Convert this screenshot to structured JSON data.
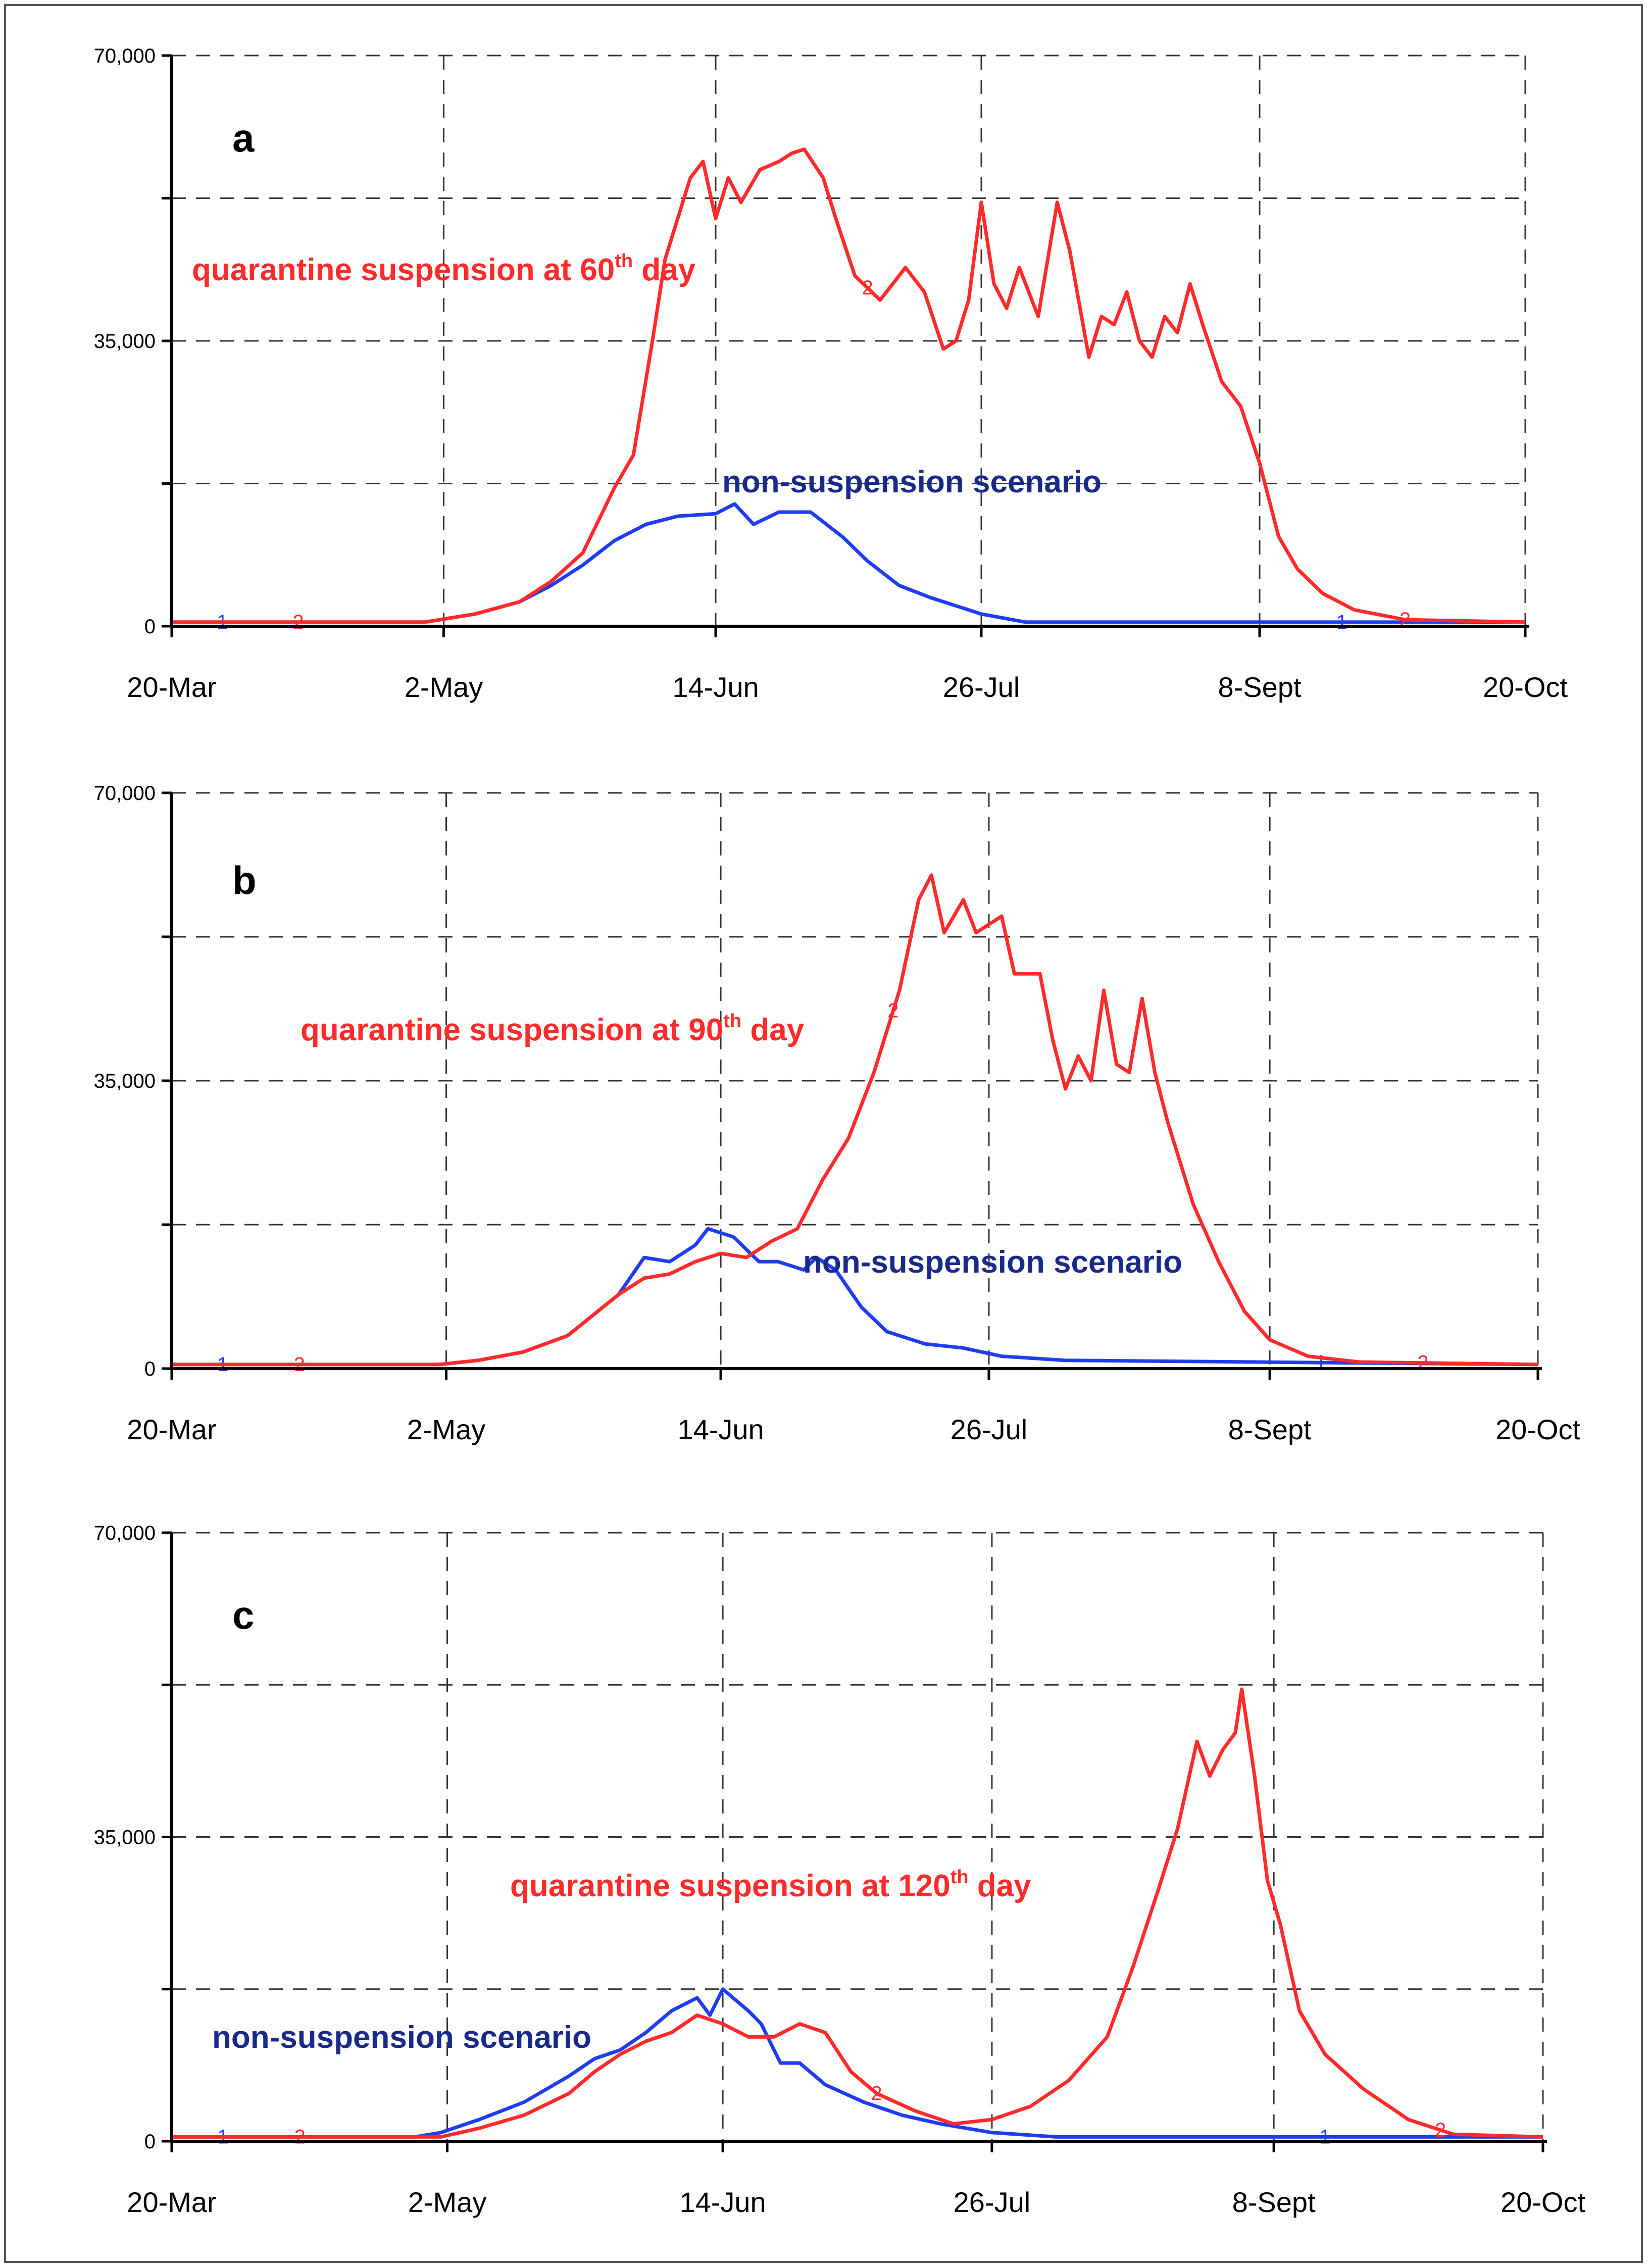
{
  "chart_data": [
    {
      "type": "line",
      "panel": "a",
      "x_tick_labels": [
        "20-Mar",
        "2-May",
        "14-Jun",
        "26-Jul",
        "8-Sept",
        "20-Oct"
      ],
      "x_tick_days": [
        0,
        43,
        86,
        128,
        172,
        214
      ],
      "y_tick_labels": [
        "70,000",
        "35,000",
        "0"
      ],
      "y_tick_values": [
        70000,
        35000,
        0
      ],
      "ylim": [
        0,
        70000
      ],
      "xlim": [
        0,
        214
      ],
      "xlabel": "",
      "ylabel": "",
      "annotations": [
        {
          "series": "suspension",
          "text": "quarantine suspension at 60",
          "sup": "th",
          "suffix": " day"
        },
        {
          "series": "baseline",
          "text": "non-suspension scenario",
          "sup": "",
          "suffix": ""
        }
      ],
      "series": [
        {
          "name": "non-suspension scenario",
          "marker": "1",
          "color": "#1f3df0",
          "points": [
            [
              0,
              500
            ],
            [
              40,
              500
            ],
            [
              48,
              1500
            ],
            [
              55,
              3000
            ],
            [
              60,
              5000
            ],
            [
              65,
              7500
            ],
            [
              70,
              10500
            ],
            [
              75,
              12500
            ],
            [
              80,
              13500
            ],
            [
              86,
              13800
            ],
            [
              89,
              15000
            ],
            [
              92,
              12500
            ],
            [
              96,
              14000
            ],
            [
              101,
              14000
            ],
            [
              106,
              11000
            ],
            [
              110,
              8000
            ],
            [
              115,
              5000
            ],
            [
              120,
              3500
            ],
            [
              128,
              1500
            ],
            [
              135,
              500
            ],
            [
              214,
              500
            ]
          ],
          "label_days": [
            8,
            185
          ]
        },
        {
          "name": "quarantine suspension at 60th day",
          "marker": "2",
          "color": "#ff2a2a",
          "points": [
            [
              0,
              500
            ],
            [
              40,
              500
            ],
            [
              48,
              1500
            ],
            [
              55,
              3000
            ],
            [
              60,
              5500
            ],
            [
              65,
              9000
            ],
            [
              70,
              17000
            ],
            [
              73,
              21000
            ],
            [
              76,
              35000
            ],
            [
              78,
              45000
            ],
            [
              82,
              55000
            ],
            [
              84,
              57000
            ],
            [
              86,
              50000
            ],
            [
              88,
              55000
            ],
            [
              90,
              52000
            ],
            [
              93,
              56000
            ],
            [
              96,
              57000
            ],
            [
              98,
              58000
            ],
            [
              100,
              58500
            ],
            [
              103,
              55000
            ],
            [
              105,
              50000
            ],
            [
              108,
              43000
            ],
            [
              112,
              40000
            ],
            [
              116,
              44000
            ],
            [
              119,
              41000
            ],
            [
              122,
              34000
            ],
            [
              124,
              35000
            ],
            [
              126,
              40000
            ],
            [
              128,
              52000
            ],
            [
              130,
              42000
            ],
            [
              132,
              39000
            ],
            [
              134,
              44000
            ],
            [
              137,
              38000
            ],
            [
              140,
              52000
            ],
            [
              142,
              46000
            ],
            [
              145,
              33000
            ],
            [
              147,
              38000
            ],
            [
              149,
              37000
            ],
            [
              151,
              41000
            ],
            [
              153,
              35000
            ],
            [
              155,
              33000
            ],
            [
              157,
              38000
            ],
            [
              159,
              36000
            ],
            [
              161,
              42000
            ],
            [
              163,
              37000
            ],
            [
              166,
              30000
            ],
            [
              169,
              27000
            ],
            [
              172,
              20000
            ],
            [
              175,
              11000
            ],
            [
              178,
              7000
            ],
            [
              182,
              4000
            ],
            [
              187,
              2000
            ],
            [
              195,
              800
            ],
            [
              214,
              500
            ]
          ],
          "label_days": [
            20,
            110,
            195
          ]
        }
      ]
    },
    {
      "type": "line",
      "panel": "b",
      "x_tick_labels": [
        "20-Mar",
        "2-May",
        "14-Jun",
        "26-Jul",
        "8-Sept",
        "20-Oct"
      ],
      "x_tick_days": [
        0,
        43,
        86,
        128,
        172,
        214
      ],
      "y_tick_labels": [
        "70,000",
        "35,000",
        "0"
      ],
      "y_tick_values": [
        70000,
        35000,
        0
      ],
      "ylim": [
        0,
        70000
      ],
      "xlim": [
        0,
        214
      ],
      "xlabel": "",
      "ylabel": "",
      "annotations": [
        {
          "series": "suspension",
          "text": "quarantine suspension at 90",
          "sup": "th",
          "suffix": " day"
        },
        {
          "series": "baseline",
          "text": "non-suspension scenario",
          "sup": "",
          "suffix": ""
        }
      ],
      "series": [
        {
          "name": "non-suspension scenario",
          "marker": "1",
          "color": "#1f3df0",
          "points": [
            [
              0,
              500
            ],
            [
              42,
              500
            ],
            [
              48,
              1000
            ],
            [
              55,
              2000
            ],
            [
              62,
              4000
            ],
            [
              66,
              6500
            ],
            [
              70,
              9000
            ],
            [
              74,
              13500
            ],
            [
              78,
              13000
            ],
            [
              82,
              15000
            ],
            [
              84,
              17000
            ],
            [
              88,
              16000
            ],
            [
              92,
              13000
            ],
            [
              95,
              13000
            ],
            [
              99,
              12000
            ],
            [
              101,
              13500
            ],
            [
              104,
              12000
            ],
            [
              108,
              7500
            ],
            [
              112,
              4500
            ],
            [
              118,
              3000
            ],
            [
              124,
              2500
            ],
            [
              130,
              1500
            ],
            [
              140,
              1000
            ],
            [
              214,
              500
            ]
          ],
          "label_days": [
            8,
            180
          ]
        },
        {
          "name": "quarantine suspension at 90th day",
          "marker": "2",
          "color": "#ff2a2a",
          "points": [
            [
              0,
              500
            ],
            [
              42,
              500
            ],
            [
              48,
              1000
            ],
            [
              55,
              2000
            ],
            [
              62,
              4000
            ],
            [
              66,
              6500
            ],
            [
              70,
              9000
            ],
            [
              74,
              11000
            ],
            [
              78,
              11500
            ],
            [
              82,
              13000
            ],
            [
              86,
              14000
            ],
            [
              90,
              13500
            ],
            [
              94,
              15500
            ],
            [
              98,
              17000
            ],
            [
              102,
              23000
            ],
            [
              106,
              28000
            ],
            [
              110,
              36000
            ],
            [
              114,
              46000
            ],
            [
              117,
              57000
            ],
            [
              119,
              60000
            ],
            [
              121,
              53000
            ],
            [
              124,
              57000
            ],
            [
              126,
              53000
            ],
            [
              128,
              54000
            ],
            [
              130,
              55000
            ],
            [
              132,
              48000
            ],
            [
              136,
              48000
            ],
            [
              138,
              40000
            ],
            [
              140,
              34000
            ],
            [
              142,
              38000
            ],
            [
              144,
              35000
            ],
            [
              146,
              46000
            ],
            [
              148,
              37000
            ],
            [
              150,
              36000
            ],
            [
              152,
              45000
            ],
            [
              154,
              36000
            ],
            [
              156,
              30000
            ],
            [
              160,
              20000
            ],
            [
              164,
              13000
            ],
            [
              168,
              7000
            ],
            [
              172,
              3500
            ],
            [
              178,
              1500
            ],
            [
              186,
              800
            ],
            [
              214,
              500
            ]
          ],
          "label_days": [
            20,
            113,
            196
          ]
        }
      ]
    },
    {
      "type": "line",
      "panel": "c",
      "x_tick_labels": [
        "20-Mar",
        "2-May",
        "14-Jun",
        "26-Jul",
        "8-Sept",
        "20-Oct"
      ],
      "x_tick_days": [
        0,
        43,
        86,
        128,
        172,
        214
      ],
      "y_tick_labels": [
        "70,000",
        "35,000",
        "0"
      ],
      "y_tick_values": [
        70000,
        35000,
        0
      ],
      "ylim": [
        0,
        70000
      ],
      "xlim": [
        0,
        214
      ],
      "xlabel": "",
      "ylabel": "",
      "annotations": [
        {
          "series": "suspension",
          "text": "quarantine suspension at 120",
          "sup": "th",
          "suffix": " day"
        },
        {
          "series": "baseline",
          "text": "non-suspension scenario",
          "sup": "",
          "suffix": ""
        }
      ],
      "series": [
        {
          "name": "non-suspension scenario",
          "marker": "1",
          "color": "#1f3df0",
          "points": [
            [
              0,
              500
            ],
            [
              38,
              500
            ],
            [
              42,
              1000
            ],
            [
              48,
              2500
            ],
            [
              55,
              4500
            ],
            [
              62,
              7500
            ],
            [
              66,
              9500
            ],
            [
              70,
              10500
            ],
            [
              74,
              12500
            ],
            [
              78,
              15000
            ],
            [
              82,
              16500
            ],
            [
              84,
              14500
            ],
            [
              86,
              17500
            ],
            [
              90,
              15000
            ],
            [
              92,
              13500
            ],
            [
              95,
              9000
            ],
            [
              98,
              9000
            ],
            [
              102,
              6500
            ],
            [
              108,
              4500
            ],
            [
              114,
              3000
            ],
            [
              120,
              2000
            ],
            [
              128,
              1000
            ],
            [
              138,
              500
            ],
            [
              214,
              500
            ]
          ],
          "label_days": [
            8,
            180
          ]
        },
        {
          "name": "quarantine suspension at 120th day",
          "marker": "2",
          "color": "#ff2a2a",
          "points": [
            [
              0,
              500
            ],
            [
              42,
              500
            ],
            [
              48,
              1500
            ],
            [
              55,
              3000
            ],
            [
              62,
              5500
            ],
            [
              66,
              8000
            ],
            [
              70,
              10000
            ],
            [
              74,
              11500
            ],
            [
              78,
              12500
            ],
            [
              82,
              14500
            ],
            [
              86,
              13500
            ],
            [
              90,
              12000
            ],
            [
              94,
              12000
            ],
            [
              98,
              13500
            ],
            [
              102,
              12500
            ],
            [
              106,
              8000
            ],
            [
              110,
              5500
            ],
            [
              116,
              3500
            ],
            [
              122,
              2000
            ],
            [
              128,
              2500
            ],
            [
              134,
              4000
            ],
            [
              140,
              7000
            ],
            [
              146,
              12000
            ],
            [
              150,
              20000
            ],
            [
              154,
              29000
            ],
            [
              157,
              36000
            ],
            [
              160,
              46000
            ],
            [
              162,
              42000
            ],
            [
              164,
              45000
            ],
            [
              166,
              47000
            ],
            [
              167,
              52000
            ],
            [
              169,
              42000
            ],
            [
              171,
              30000
            ],
            [
              173,
              25000
            ],
            [
              176,
              15000
            ],
            [
              180,
              10000
            ],
            [
              186,
              6000
            ],
            [
              193,
              2500
            ],
            [
              200,
              800
            ],
            [
              214,
              500
            ]
          ],
          "label_days": [
            20,
            110,
            198
          ]
        }
      ]
    }
  ]
}
